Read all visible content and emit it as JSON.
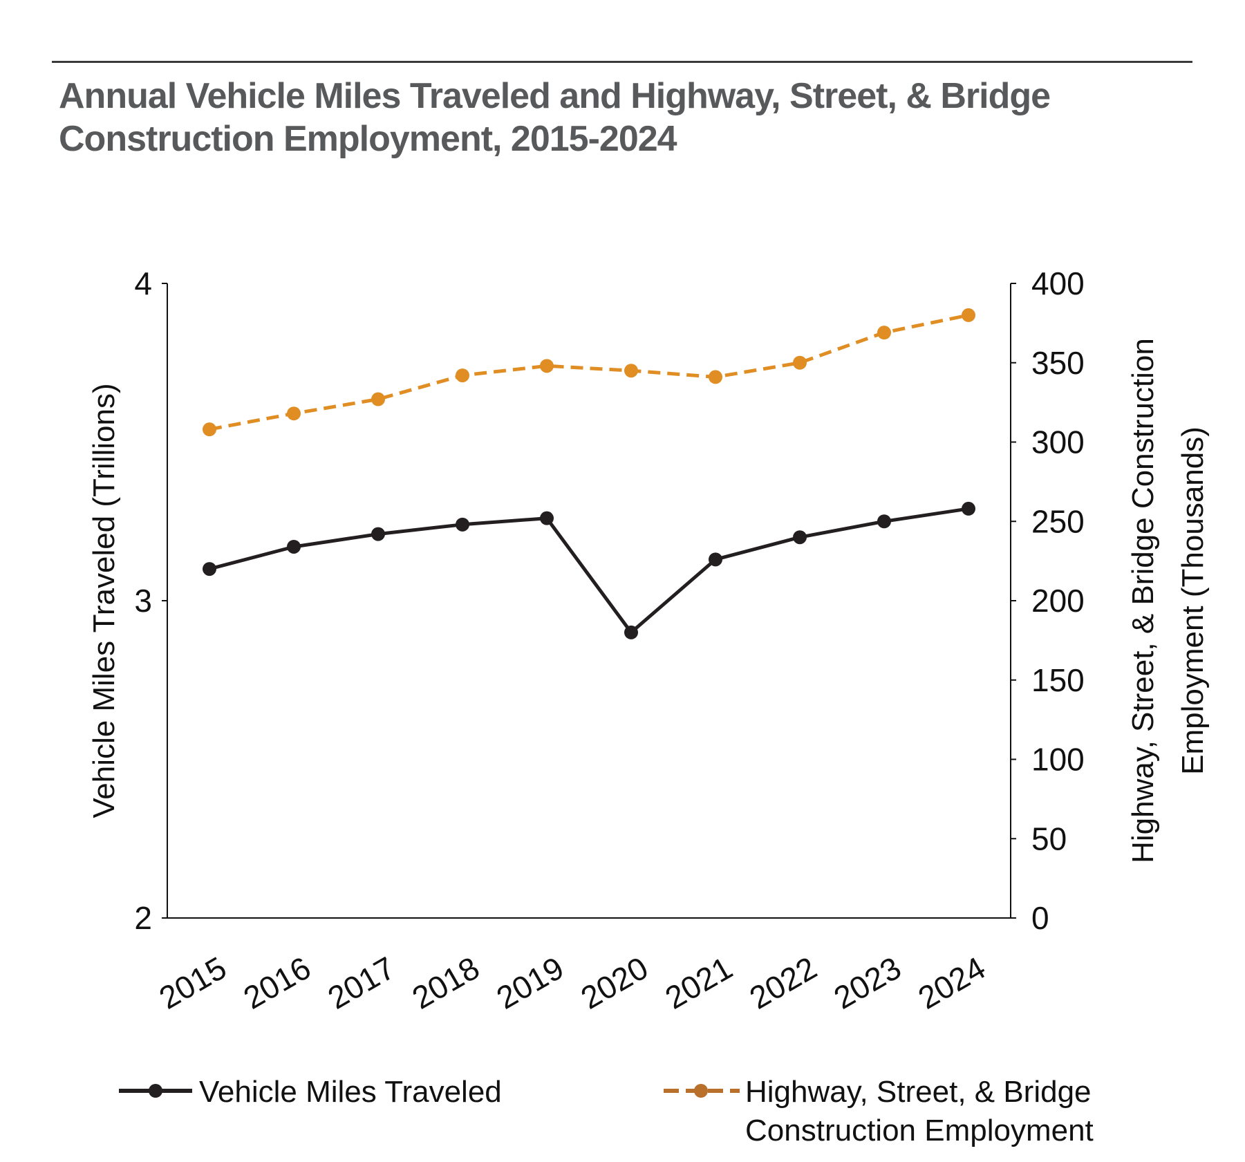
{
  "title": {
    "line1": "Annual Vehicle Miles Traveled and Highway, Street, & Bridge",
    "line2": "Construction Employment, 2015-2024"
  },
  "chart_data": {
    "type": "line",
    "categories": [
      "2015",
      "2016",
      "2017",
      "2018",
      "2019",
      "2020",
      "2021",
      "2022",
      "2023",
      "2024"
    ],
    "y_left": {
      "label": "Vehicle Miles Traveled (Trillions)",
      "ticks": [
        "2",
        "3",
        "4"
      ],
      "range": [
        2,
        4
      ]
    },
    "y_right": {
      "label_line1": "Highway, Street, & Bridge Construction",
      "label_line2": "Employment  (Thousands)",
      "ticks": [
        "0",
        "50",
        "100",
        "150",
        "200",
        "250",
        "300",
        "350",
        "400"
      ],
      "range": [
        0,
        400
      ]
    },
    "series": [
      {
        "name": "Vehicle Miles Traveled",
        "axis": "left",
        "color": "#231f20",
        "dash": "solid",
        "values": [
          3.1,
          3.17,
          3.21,
          3.24,
          3.26,
          2.9,
          3.13,
          3.2,
          3.25,
          3.29
        ]
      },
      {
        "name": "Highway, Street, & Bridge Construction Employment",
        "legend_line1": "Highway, Street, & Bridge",
        "legend_line2": "Construction Employment",
        "axis": "right",
        "color": "#e08e24",
        "legend_color": "#b8702a",
        "dash": "dashed",
        "values": [
          308,
          318,
          327,
          342,
          348,
          345,
          341,
          350,
          369,
          380
        ]
      }
    ],
    "grid": false,
    "legend_position": "bottom"
  }
}
